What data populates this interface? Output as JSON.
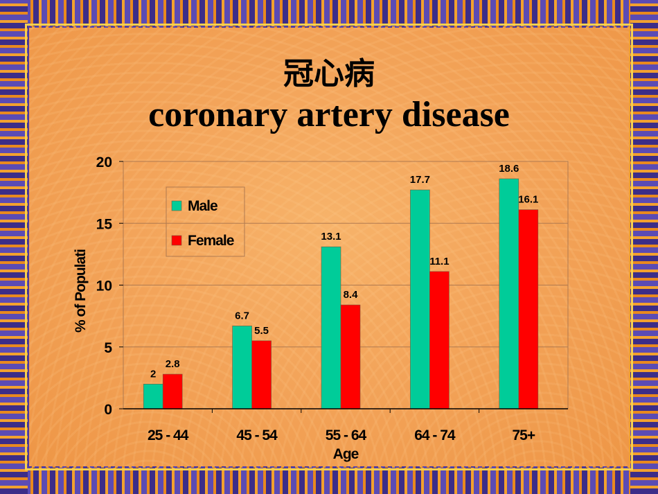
{
  "slide": {
    "title_cn": "冠心病",
    "title_en": "coronary artery disease"
  },
  "colors": {
    "male": "#00cc99",
    "female": "#ff0000",
    "gridline": "#b07a50",
    "background": "#f3a45a"
  },
  "chart_data": {
    "type": "bar",
    "categories": [
      "25 - 44",
      "45 - 54",
      "55 - 64",
      "64 - 74",
      "75+"
    ],
    "series": [
      {
        "name": "Male",
        "values": [
          2,
          6.7,
          13.1,
          17.7,
          18.6
        ]
      },
      {
        "name": "Female",
        "values": [
          2.8,
          5.5,
          8.4,
          11.1,
          16.1
        ]
      }
    ],
    "data_labels": [
      [
        "2",
        "6.7",
        "13.1",
        "17.7",
        "18.6"
      ],
      [
        "2.8",
        "5.5",
        "8.4",
        "11.1",
        "16.1"
      ]
    ],
    "title": "",
    "xlabel": "Age",
    "ylabel": "% of Populati",
    "ylim": [
      0,
      20
    ],
    "yticks": [
      "0",
      "5",
      "10",
      "15",
      "20"
    ],
    "grid": true,
    "legend_position": "upper-left inside"
  }
}
